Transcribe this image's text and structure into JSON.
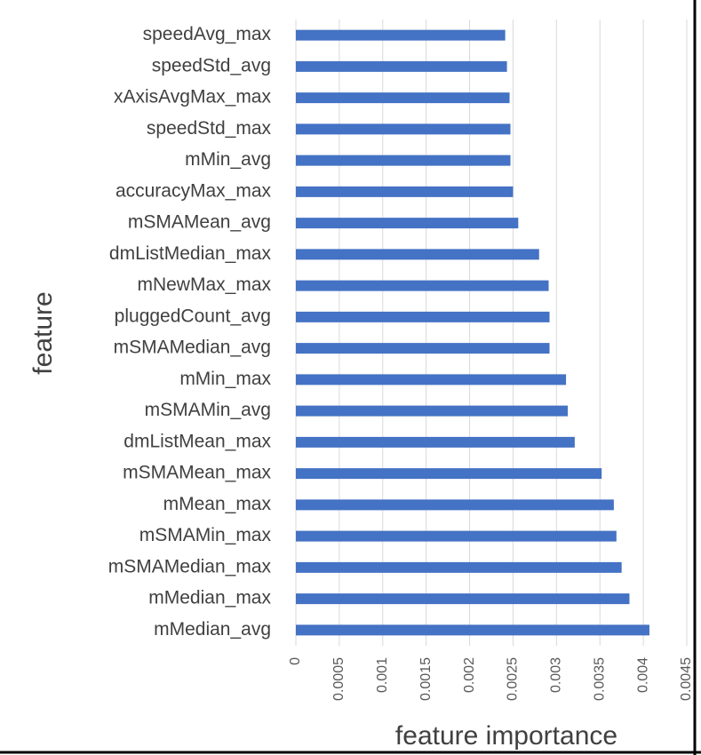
{
  "chart_data": {
    "type": "barh",
    "x_label": "feature importance",
    "y_label": "feature",
    "categories": [
      "speedAvg_max",
      "speedStd_avg",
      "xAxisAvgMax_max",
      "speedStd_max",
      "mMin_avg",
      "accuracyMax_max",
      "mSMAMean_avg",
      "dmListMedian_max",
      "mNewMax_max",
      "pluggedCount_avg",
      "mSMAMedian_avg",
      "mMin_max",
      "mSMAMin_avg",
      "dmListMean_max",
      "mSMAMean_max",
      "mMean_max",
      "mSMAMin_max",
      "mSMAMedian_max",
      "mMedian_max",
      "mMedian_avg"
    ],
    "values": [
      0.00241,
      0.00243,
      0.00246,
      0.00247,
      0.00247,
      0.0025,
      0.00256,
      0.0028,
      0.00291,
      0.00292,
      0.00292,
      0.00311,
      0.00313,
      0.00321,
      0.00352,
      0.00366,
      0.00369,
      0.00375,
      0.00384,
      0.00407
    ],
    "color": "#4472c4",
    "xlim": [
      0,
      0.0045
    ],
    "xticks": [
      0,
      0.0005,
      0.001,
      0.0015,
      0.002,
      0.0025,
      0.003,
      0.0035,
      0.004,
      0.0045
    ],
    "grid": true
  }
}
